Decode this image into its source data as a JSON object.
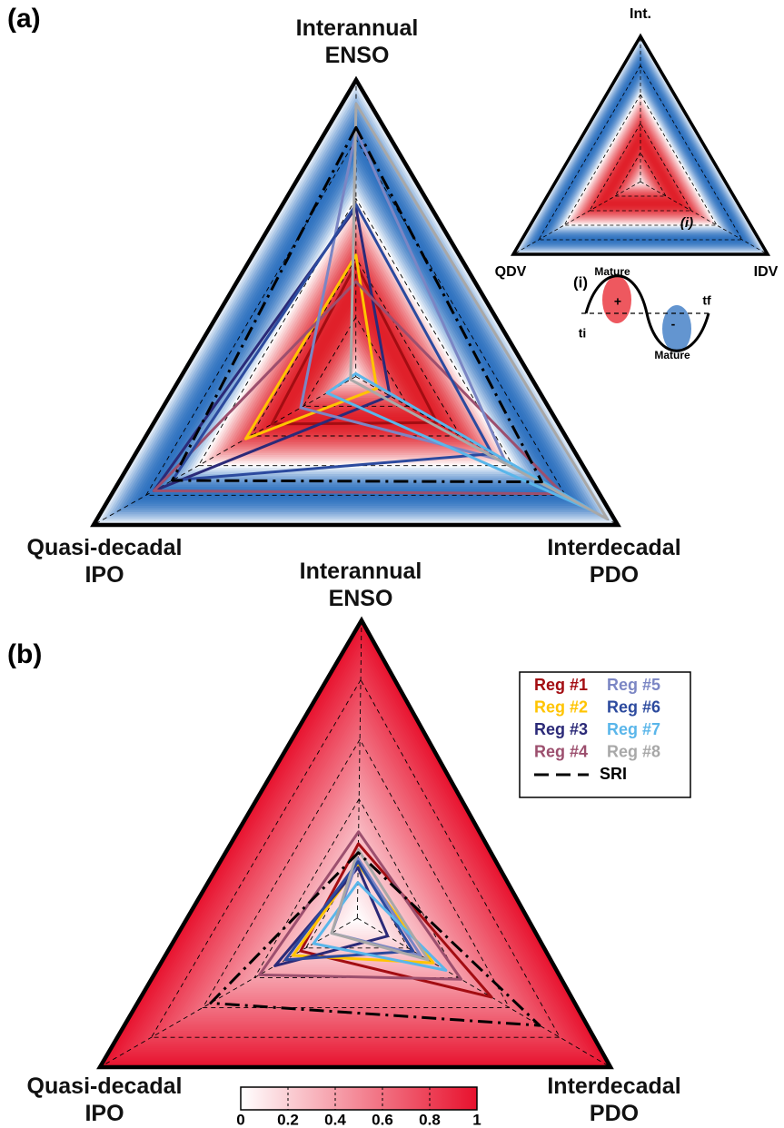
{
  "chart_data": [
    {
      "type": "radar",
      "label": "(a)",
      "categories": [
        "Interannual\nENSO",
        "Quasi-decadal\nIPO",
        "Interdecadal\nPDO"
      ],
      "rlim": [
        0,
        1
      ],
      "rgrid": [
        0.2,
        0.4,
        0.6,
        0.8
      ],
      "background_colors": [
        "#e0202a",
        "#ffffff",
        "#2f72c0"
      ],
      "series": [
        {
          "color": "#a30d12",
          "values": [
            0.38,
            0.32,
            0.31
          ]
        },
        {
          "color": "#ffc400",
          "values": [
            0.41,
            0.42,
            0.08
          ]
        },
        {
          "color": "#2b2a78",
          "values": [
            0.57,
            0.77,
            0.13
          ]
        },
        {
          "color": "#9c4f6e",
          "values": [
            0.32,
            0.77,
            0.79
          ]
        },
        {
          "color": "#7b86c4",
          "values": [
            0.83,
            0.21,
            0.57
          ]
        },
        {
          "color": "#2c4a9e",
          "values": [
            0.58,
            0.7,
            0.52
          ]
        },
        {
          "color": "#5ab6ea",
          "values": [
            0.01,
            0.11,
            0.91
          ]
        },
        {
          "color": "#a8a8a8",
          "values": [
            0.92,
            0.02,
            0.96
          ]
        },
        {
          "color": "#000000",
          "dash": true,
          "values": [
            0.84,
            0.7,
            0.71
          ]
        }
      ],
      "inset": {
        "vertex_labels": [
          "Int.",
          "QDV",
          "IDV"
        ],
        "marker": "(i)",
        "panel_label": "(i)",
        "peak_labels": [
          "Mature",
          "Mature"
        ],
        "signs": [
          "+",
          "-"
        ],
        "ends": [
          "ti",
          "tf"
        ]
      }
    },
    {
      "type": "radar",
      "label": "(b)",
      "categories": [
        "Interannual\nENSO",
        "Quasi-decadal\nIPO",
        "Interdecadal\nPDO"
      ],
      "rlim": [
        0,
        1
      ],
      "rgrid": [
        0.2,
        0.4,
        0.6,
        0.8
      ],
      "legend": "top-right",
      "series": [
        {
          "name": "Reg #1",
          "color": "#a30d12",
          "values": [
            0.25,
            0.22,
            0.53
          ]
        },
        {
          "name": "Reg #2",
          "color": "#ffc400",
          "values": [
            0.18,
            0.25,
            0.3
          ]
        },
        {
          "name": "Reg #3",
          "color": "#2b2a78",
          "values": [
            0.17,
            0.32,
            0.12
          ]
        },
        {
          "name": "Reg #4",
          "color": "#9c4f6e",
          "values": [
            0.29,
            0.38,
            0.41
          ]
        },
        {
          "name": "Reg #5",
          "color": "#7b86c4",
          "values": [
            0.2,
            0.1,
            0.25
          ]
        },
        {
          "name": "Reg #6",
          "color": "#2c4a9e",
          "values": [
            0.19,
            0.28,
            0.22
          ]
        },
        {
          "name": "Reg #7",
          "color": "#5ab6ea",
          "values": [
            0.12,
            0.17,
            0.35
          ]
        },
        {
          "name": "Reg #8",
          "color": "#a8a8a8",
          "values": [
            0.23,
            0.1,
            0.28
          ]
        },
        {
          "name": "SRI",
          "color": "#000000",
          "dash": true,
          "values": [
            0.22,
            0.57,
            0.72
          ]
        }
      ],
      "colorbar": {
        "lim": [
          0,
          1
        ],
        "ticks": [
          0,
          0.2,
          0.4,
          0.6,
          0.8,
          1
        ],
        "colors": [
          "#ffffff",
          "#e8112d"
        ]
      }
    }
  ]
}
